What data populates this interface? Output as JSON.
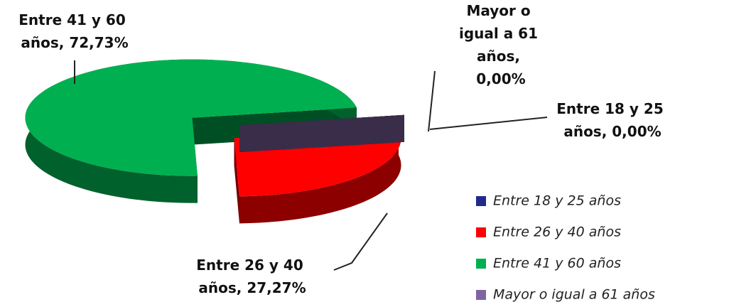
{
  "chart_data": {
    "type": "pie3d",
    "categories": [
      "Entre 18 y 25 años",
      "Entre 26 y 40 años",
      "Entre 41 y 60 años",
      "Mayor o igual a 61 años"
    ],
    "values": [
      0,
      27.27,
      72.73,
      0
    ],
    "value_labels": [
      "Entre 18 y 25 años, 0,00%",
      "Entre 26 y 40 años, 27,27%",
      "Entre 41 y 60 años, 72,73%",
      "Mayor o igual a 61 años, 0,00%"
    ],
    "colors": [
      "#1f2a8c",
      "#ff0000",
      "#00b050",
      "#8064a2"
    ],
    "legend": "right"
  }
}
